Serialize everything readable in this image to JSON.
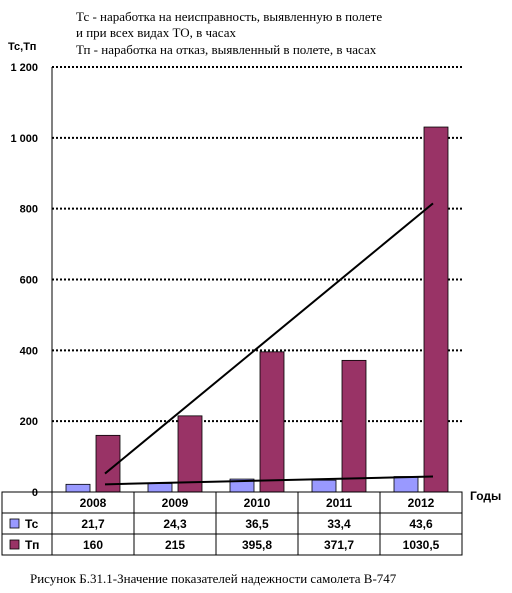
{
  "notes": [
    "Тс - наработка на неисправность, выявленную в полете",
    "и при всех видах ТО, в часах",
    "Тп - наработка на отказ, выявленный в полете, в часах"
  ],
  "caption": "Рисунок Б.31.1-Значение показателей надежности самолета В-747",
  "chart_data": {
    "type": "bar",
    "ylabel": "Тс,Тп",
    "xlabel": "Годы",
    "ylim": [
      0,
      1200
    ],
    "yticks": [
      0,
      200,
      400,
      600,
      800,
      1000,
      1200
    ],
    "ytick_labels": [
      "0",
      "200",
      "400",
      "600",
      "800",
      "1 000",
      "1 200"
    ],
    "grid": "horizontal dotted",
    "categories": [
      "2008",
      "2009",
      "2010",
      "2011",
      "2012"
    ],
    "series": [
      {
        "name": "Тс",
        "color": "#9999ff",
        "values": [
          21.7,
          24.3,
          36.5,
          33.4,
          43.6
        ],
        "labels": [
          "21,7",
          "24,3",
          "36,5",
          "33,4",
          "43,6"
        ]
      },
      {
        "name": "Тп",
        "color": "#993366",
        "values": [
          160,
          215,
          395.8,
          371.7,
          1030.5
        ],
        "labels": [
          "160",
          "215",
          "395,8",
          "371,7",
          "1030,5"
        ]
      }
    ],
    "trendlines": [
      {
        "series": "Тс",
        "from": 21.7,
        "to": 43.6
      },
      {
        "series": "Тп",
        "from": 52,
        "to": 815
      }
    ],
    "legend": "data table below chart"
  }
}
